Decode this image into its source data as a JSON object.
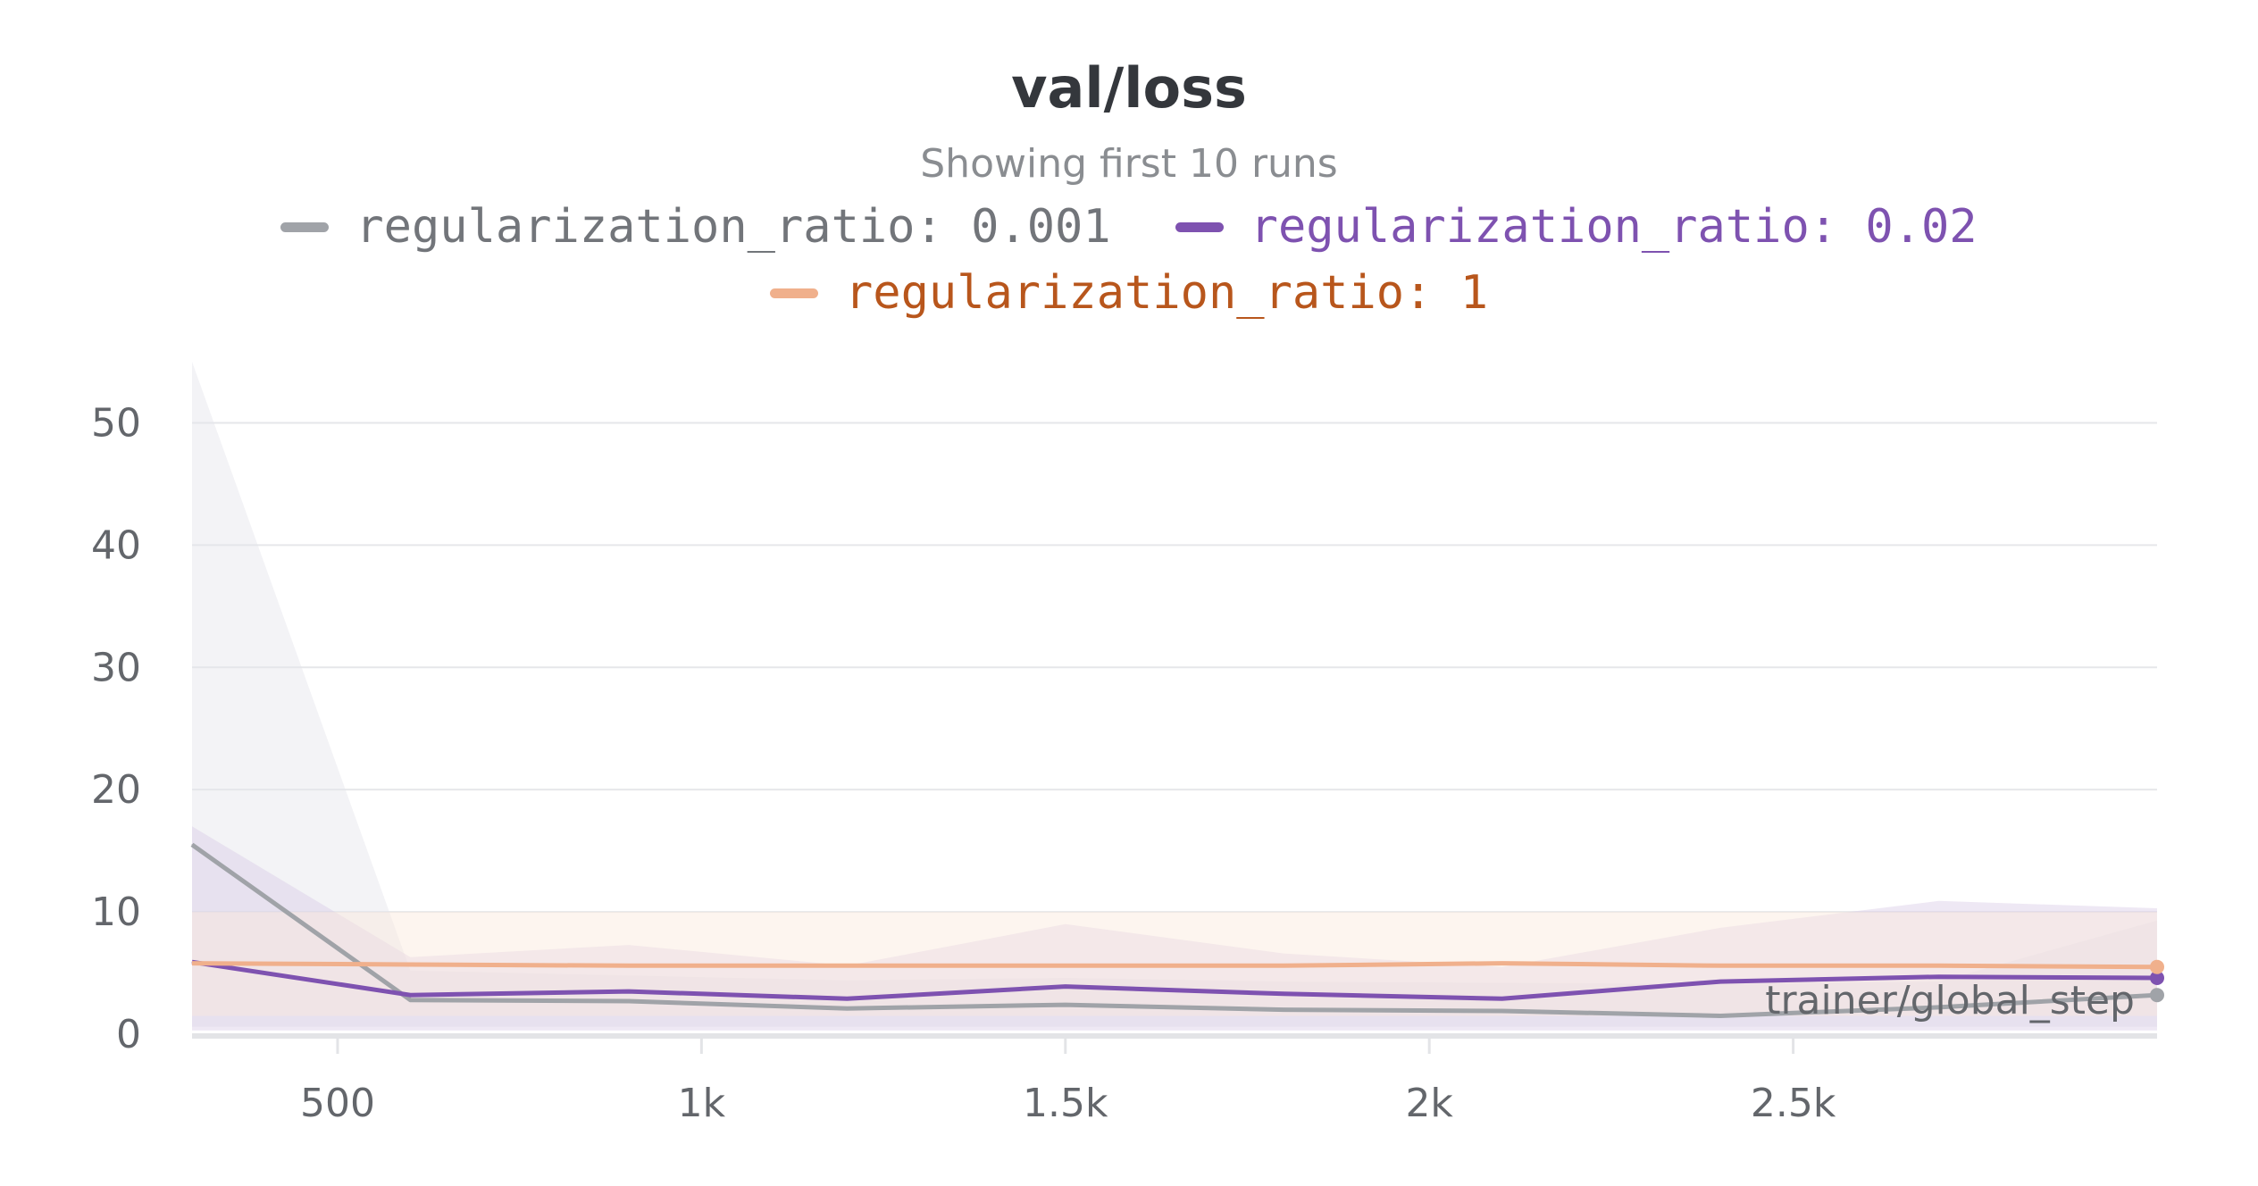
{
  "chart_data": {
    "type": "line",
    "title": "val/loss",
    "subtitle": "Showing first 10 runs",
    "xlabel": "trainer/global_step",
    "ylabel": "",
    "xlim": [
      300,
      3000
    ],
    "ylim": [
      0,
      55
    ],
    "x_ticks": [
      500,
      1000,
      1500,
      2000,
      2500
    ],
    "x_tick_labels": [
      "500",
      "1k",
      "1.5k",
      "2k",
      "2.5k"
    ],
    "y_ticks": [
      0,
      10,
      20,
      30,
      40,
      50
    ],
    "y_tick_labels": [
      "0",
      "10",
      "20",
      "30",
      "40",
      "50"
    ],
    "grid": true,
    "legend_position": "top-center",
    "series": [
      {
        "name": "regularization_ratio: 0.001",
        "color": "#a0a3a8",
        "label_color": "#72757a",
        "x": [
          300,
          600,
          900,
          1200,
          1500,
          1800,
          2100,
          2400,
          2700,
          3000
        ],
        "y": [
          15.5,
          2.8,
          2.7,
          2.1,
          2.4,
          2.0,
          1.9,
          1.5,
          2.2,
          3.2
        ],
        "band_upper": [
          55,
          5.2,
          4.8,
          4.4,
          4.6,
          4.3,
          4.2,
          4.1,
          4.3,
          9.3
        ],
        "band_lower": [
          0.6,
          0.6,
          0.6,
          0.6,
          0.6,
          0.6,
          0.6,
          0.6,
          0.6,
          0.6
        ]
      },
      {
        "name": "regularization_ratio: 0.02",
        "color": "#7e52b0",
        "label_color": "#7e52b0",
        "x": [
          300,
          600,
          900,
          1200,
          1500,
          1800,
          2100,
          2400,
          2700,
          3000
        ],
        "y": [
          5.9,
          3.2,
          3.5,
          2.9,
          3.9,
          3.3,
          2.9,
          4.3,
          4.7,
          4.6
        ],
        "band_upper": [
          17,
          6.3,
          7.3,
          5.6,
          9.0,
          6.6,
          5.5,
          8.7,
          10.9,
          10.3
        ],
        "band_lower": [
          0.3,
          0.3,
          0.3,
          0.3,
          0.3,
          0.3,
          0.3,
          0.3,
          0.3,
          0.3
        ]
      },
      {
        "name": "regularization_ratio: 1",
        "color": "#f0b08c",
        "label_color": "#b8561c",
        "x": [
          300,
          600,
          900,
          1200,
          1500,
          1800,
          2100,
          2400,
          2700,
          3000
        ],
        "y": [
          5.8,
          5.7,
          5.6,
          5.6,
          5.6,
          5.6,
          5.8,
          5.6,
          5.6,
          5.5
        ],
        "band_upper": [
          10,
          10,
          10,
          10,
          10,
          10,
          10,
          10,
          10,
          10
        ],
        "band_lower": [
          1.5,
          1.5,
          1.5,
          1.5,
          1.5,
          1.5,
          1.5,
          1.5,
          1.5,
          1.5
        ]
      }
    ]
  }
}
